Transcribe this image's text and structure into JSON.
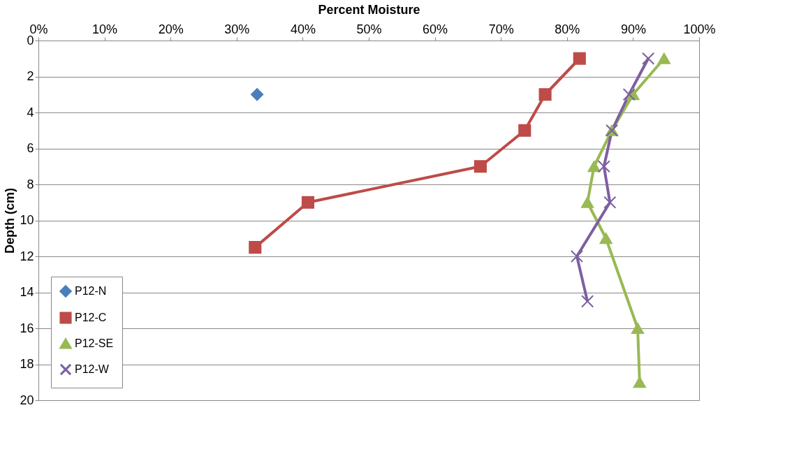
{
  "chart_data": {
    "type": "line",
    "xlabel": "Percent Moisture",
    "ylabel": "Depth (cm)",
    "xlim": [
      0,
      100
    ],
    "xticks": [
      {
        "value": 0,
        "label": "0%"
      },
      {
        "value": 10,
        "label": "10%"
      },
      {
        "value": 20,
        "label": "20%"
      },
      {
        "value": 30,
        "label": "30%"
      },
      {
        "value": 40,
        "label": "40%"
      },
      {
        "value": 50,
        "label": "50%"
      },
      {
        "value": 60,
        "label": "60%"
      },
      {
        "value": 70,
        "label": "70%"
      },
      {
        "value": 80,
        "label": "80%"
      },
      {
        "value": 90,
        "label": "90%"
      },
      {
        "value": 100,
        "label": "100%"
      }
    ],
    "ylim": [
      20,
      0
    ],
    "yticks": [
      0,
      2,
      4,
      6,
      8,
      10,
      12,
      14,
      16,
      18,
      20
    ],
    "grid": "y",
    "legend": "bottom left",
    "series": [
      {
        "name": "P12-N",
        "color": "#4a7ebb",
        "marker": "diamond",
        "x": [
          33.1
        ],
        "values": [
          3
        ]
      },
      {
        "name": "P12-C",
        "color": "#be4b48",
        "marker": "square",
        "x": [
          81.9,
          76.7,
          73.6,
          66.9,
          40.8,
          32.8
        ],
        "values": [
          1,
          3,
          5,
          7,
          9,
          11.5
        ]
      },
      {
        "name": "P12-SE",
        "color": "#98b954",
        "marker": "triangle",
        "x": [
          94.7,
          90.0,
          86.8,
          84.1,
          83.1,
          85.9,
          90.7,
          91.0
        ],
        "values": [
          1,
          3,
          5,
          7,
          9,
          11,
          16,
          19
        ]
      },
      {
        "name": "P12-W",
        "color": "#7d5fa0",
        "marker": "cross",
        "x": [
          92.3,
          89.4,
          86.8,
          85.6,
          86.5,
          81.5,
          83.1
        ],
        "values": [
          1,
          3,
          5,
          7,
          9,
          12,
          14.5
        ]
      }
    ]
  }
}
